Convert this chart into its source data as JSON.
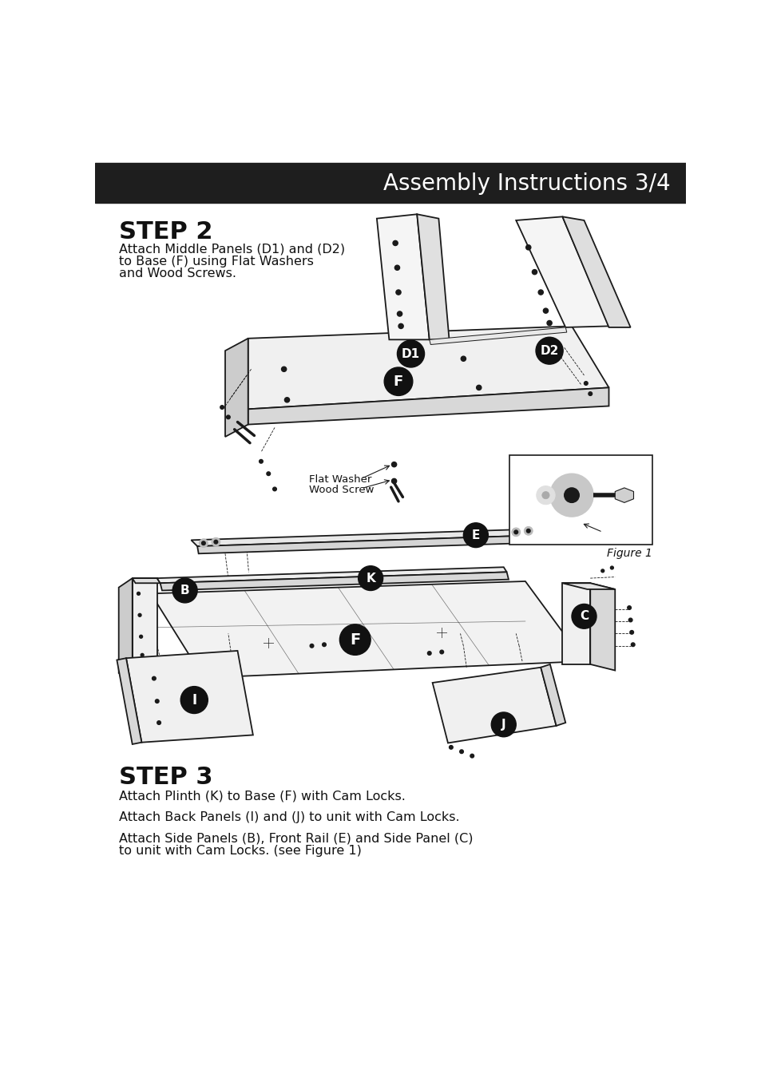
{
  "page_bg": "#ffffff",
  "header_bg": "#1e1e1e",
  "header_text": "Assembly Instructions 3/4",
  "header_text_color": "#ffffff",
  "header_font_size": 20,
  "step2_title": "STEP 2",
  "step2_desc_lines": [
    "Attach Middle Panels (D1) and (D2)",
    "to Base (F) using Flat Washers",
    "and Wood Screws."
  ],
  "step2_desc_fontsize": 11.5,
  "step3_title": "STEP 3",
  "step3_desc_blocks": [
    "Attach Plinth (K) to Base (F) with Cam Locks.",
    "Attach Back Panels (I) and (J) to unit with Cam Locks.",
    "Attach Side Panels (B), Front Rail (E) and Side Panel (C)\nto unit with Cam Locks. (see Figure 1)"
  ],
  "step3_desc_fontsize": 11.5,
  "line_color": "#1a1a1a",
  "lw_main": 1.3,
  "lw_thin": 0.7,
  "lw_dashed": 0.6
}
